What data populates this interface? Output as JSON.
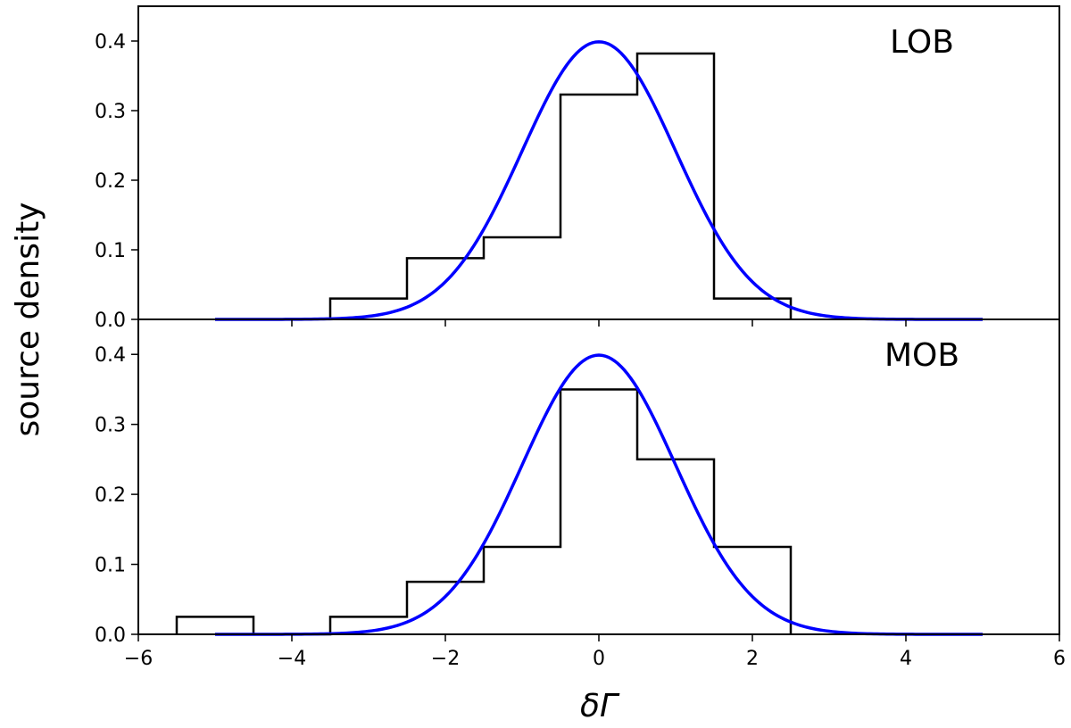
{
  "chart_data": [
    {
      "type": "bar",
      "panel": "LOB",
      "bin_edges": [
        -3.5,
        -2.5,
        -1.5,
        -0.5,
        0.5,
        1.5,
        2.5
      ],
      "values": [
        0.03,
        0.088,
        0.118,
        0.323,
        0.382,
        0.03
      ],
      "fit": {
        "type": "gaussian",
        "mean": 0,
        "sigma": 1,
        "x_range": [
          -5,
          5
        ],
        "color": "#0000ff"
      },
      "xlim": [
        -6,
        6
      ],
      "ylim": [
        0,
        0.45
      ],
      "yticks": [
        "0.0",
        "0.1",
        "0.2",
        "0.3",
        "0.4"
      ],
      "yticks_values": [
        0,
        0.1,
        0.2,
        0.3,
        0.4
      ],
      "histogram_color": "#000000"
    },
    {
      "type": "bar",
      "panel": "MOB",
      "bin_edges": [
        -5.5,
        -4.5,
        -3.5,
        -2.5,
        -1.5,
        -0.5,
        0.5,
        1.5,
        2.5
      ],
      "values": [
        0.025,
        0,
        0.025,
        0.075,
        0.125,
        0.35,
        0.25,
        0.125
      ],
      "fit": {
        "type": "gaussian",
        "mean": 0,
        "sigma": 1,
        "x_range": [
          -5,
          5
        ],
        "color": "#0000ff"
      },
      "xlim": [
        -6,
        6
      ],
      "ylim": [
        0,
        0.45
      ],
      "yticks": [
        "0.0",
        "0.1",
        "0.2",
        "0.3",
        "0.4"
      ],
      "yticks_values": [
        0,
        0.1,
        0.2,
        0.3,
        0.4
      ],
      "xticks": [
        "−6",
        "−4",
        "−2",
        "0",
        "2",
        "4",
        "6"
      ],
      "xticks_values": [
        -6,
        -4,
        -2,
        0,
        2,
        4,
        6
      ],
      "histogram_color": "#000000"
    }
  ],
  "ylabel": "source density",
  "xlabel": "δΓ"
}
